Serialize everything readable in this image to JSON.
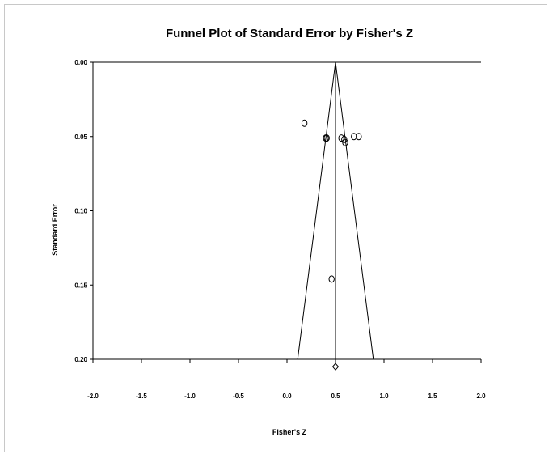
{
  "chart_data": {
    "type": "scatter",
    "title": "Funnel Plot of Standard Error by Fisher's Z",
    "xlabel": "Fisher's Z",
    "ylabel": "Standard Error",
    "xlim": [
      -2.0,
      2.0
    ],
    "ylim": [
      0.0,
      0.2
    ],
    "y_inverted": true,
    "x_ticks": [
      "-2.0",
      "-1.5",
      "-1.0",
      "-0.5",
      "0.0",
      "0.5",
      "1.0",
      "1.5",
      "2.0"
    ],
    "y_ticks": [
      "0.00",
      "0.05",
      "0.10",
      "0.15",
      "0.20"
    ],
    "grid": false,
    "legend": "none",
    "series": [
      {
        "marker": "circle",
        "points": [
          {
            "x": 0.18,
            "y": 0.041
          },
          {
            "x": 0.4,
            "y": 0.051
          },
          {
            "x": 0.41,
            "y": 0.051
          },
          {
            "x": 0.56,
            "y": 0.051
          },
          {
            "x": 0.59,
            "y": 0.052
          },
          {
            "x": 0.6,
            "y": 0.054
          },
          {
            "x": 0.69,
            "y": 0.05
          },
          {
            "x": 0.74,
            "y": 0.05
          },
          {
            "x": 0.46,
            "y": 0.146
          }
        ]
      }
    ],
    "summary_effect": {
      "x": 0.5,
      "y": 0.205,
      "marker": "diamond"
    },
    "funnel": {
      "center_x": 0.5,
      "apex_y": 0.0,
      "base_y": 0.2,
      "base_left_x": 0.11,
      "base_right_x": 0.89
    },
    "colors": {
      "marks": "#000000",
      "frame": "#c8c8c8"
    }
  }
}
